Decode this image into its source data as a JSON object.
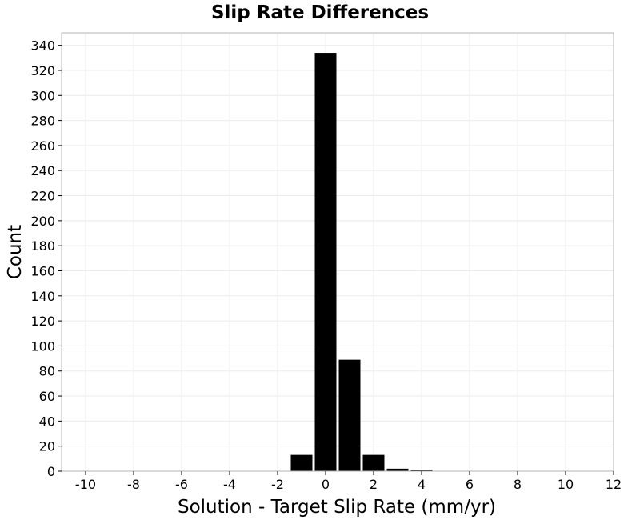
{
  "chart_data": {
    "type": "bar",
    "title": "Slip Rate Differences",
    "xlabel": "Solution - Target Slip Rate (mm/yr)",
    "ylabel": "Count",
    "xlim": [
      -11,
      12
    ],
    "ylim": [
      0,
      350
    ],
    "x_ticks": [
      -10,
      -8,
      -6,
      -4,
      -2,
      0,
      2,
      4,
      6,
      8,
      10,
      12
    ],
    "y_ticks": [
      0,
      20,
      40,
      60,
      80,
      100,
      120,
      140,
      160,
      180,
      200,
      220,
      240,
      260,
      280,
      300,
      320,
      340
    ],
    "bin_width": 1,
    "bins": [
      {
        "center": -1,
        "count": 13
      },
      {
        "center": 0,
        "count": 334
      },
      {
        "center": 1,
        "count": 89
      },
      {
        "center": 2,
        "count": 13
      },
      {
        "center": 3,
        "count": 2
      },
      {
        "center": 4,
        "count": 1
      }
    ],
    "bar_color": "#000000",
    "grid": true,
    "legend": "none"
  }
}
